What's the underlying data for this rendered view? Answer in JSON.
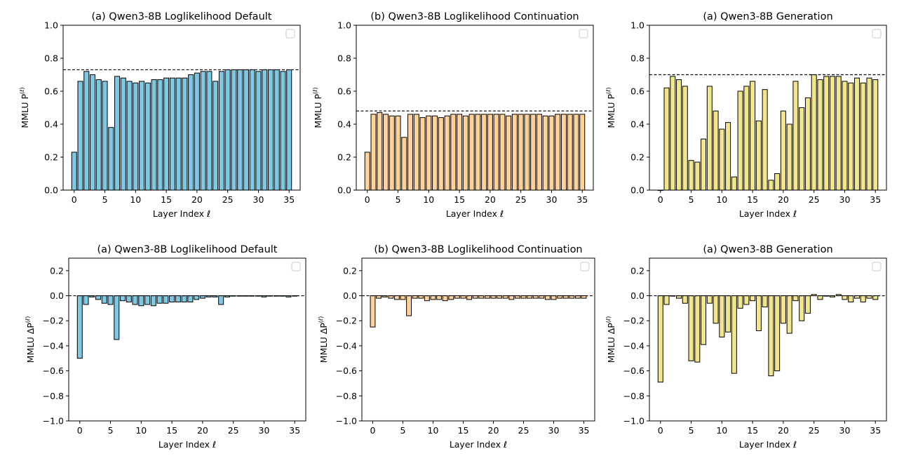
{
  "figure": {
    "background": "#ffffff",
    "edge_color": "#000000",
    "reference_line_color": "#000000"
  },
  "chart_data": [
    {
      "type": "bar",
      "title": "(a) Qwen3-8B Loglikelihood Default",
      "xlabel": "Layer Index ℓ",
      "ylabel": "MMLU P",
      "ylabel_sup": "(ℓ)",
      "ylim": [
        0,
        1.0
      ],
      "yticks": [
        "0.0",
        "0.2",
        "0.4",
        "0.6",
        "0.8",
        "1.0"
      ],
      "xlim": [
        -1.8,
        36.8
      ],
      "xticks": [
        "0",
        "5",
        "10",
        "15",
        "20",
        "25",
        "30",
        "35"
      ],
      "x": [
        0,
        1,
        2,
        3,
        4,
        5,
        6,
        7,
        8,
        9,
        10,
        11,
        12,
        13,
        14,
        15,
        16,
        17,
        18,
        19,
        20,
        21,
        22,
        23,
        24,
        25,
        26,
        27,
        28,
        29,
        30,
        31,
        32,
        33,
        34,
        35
      ],
      "values": [
        0.23,
        0.66,
        0.72,
        0.7,
        0.67,
        0.66,
        0.38,
        0.69,
        0.68,
        0.66,
        0.65,
        0.66,
        0.65,
        0.67,
        0.67,
        0.68,
        0.68,
        0.68,
        0.68,
        0.7,
        0.71,
        0.72,
        0.72,
        0.66,
        0.72,
        0.73,
        0.73,
        0.73,
        0.73,
        0.73,
        0.72,
        0.73,
        0.73,
        0.73,
        0.72,
        0.73
      ],
      "reference_line": 0.73,
      "bar_color": "#7ec8e3",
      "legend": "top-right (empty)"
    },
    {
      "type": "bar",
      "title": "(b) Qwen3-8B Loglikelihood Continuation",
      "xlabel": "Layer Index ℓ",
      "ylabel": "MMLU P",
      "ylabel_sup": "(ℓ)",
      "ylim": [
        0,
        1.0
      ],
      "yticks": [
        "0.0",
        "0.2",
        "0.4",
        "0.6",
        "0.8",
        "1.0"
      ],
      "xlim": [
        -1.8,
        36.8
      ],
      "xticks": [
        "0",
        "5",
        "10",
        "15",
        "20",
        "25",
        "30",
        "35"
      ],
      "x": [
        0,
        1,
        2,
        3,
        4,
        5,
        6,
        7,
        8,
        9,
        10,
        11,
        12,
        13,
        14,
        15,
        16,
        17,
        18,
        19,
        20,
        21,
        22,
        23,
        24,
        25,
        26,
        27,
        28,
        29,
        30,
        31,
        32,
        33,
        34,
        35
      ],
      "values": [
        0.23,
        0.46,
        0.47,
        0.46,
        0.45,
        0.45,
        0.32,
        0.46,
        0.46,
        0.44,
        0.45,
        0.45,
        0.44,
        0.45,
        0.46,
        0.46,
        0.45,
        0.46,
        0.46,
        0.46,
        0.46,
        0.46,
        0.46,
        0.45,
        0.46,
        0.46,
        0.46,
        0.46,
        0.46,
        0.45,
        0.45,
        0.46,
        0.46,
        0.46,
        0.46,
        0.46
      ],
      "reference_line": 0.48,
      "bar_color": "#ffd29a",
      "legend": "top-right (empty)"
    },
    {
      "type": "bar",
      "title": "(a) Qwen3-8B Generation",
      "xlabel": "Layer Index ℓ",
      "ylabel": "MMLU P",
      "ylabel_sup": "(ℓ)",
      "ylim": [
        0,
        1.0
      ],
      "yticks": [
        "0.0",
        "0.2",
        "0.4",
        "0.6",
        "0.8",
        "1.0"
      ],
      "xlim": [
        -1.8,
        36.8
      ],
      "xticks": [
        "0",
        "5",
        "10",
        "15",
        "20",
        "25",
        "30",
        "35"
      ],
      "x": [
        0,
        1,
        2,
        3,
        4,
        5,
        6,
        7,
        8,
        9,
        10,
        11,
        12,
        13,
        14,
        15,
        16,
        17,
        18,
        19,
        20,
        21,
        22,
        23,
        24,
        25,
        26,
        27,
        28,
        29,
        30,
        31,
        32,
        33,
        34,
        35
      ],
      "values": [
        0.0,
        0.62,
        0.69,
        0.67,
        0.63,
        0.18,
        0.17,
        0.31,
        0.63,
        0.48,
        0.37,
        0.41,
        0.08,
        0.6,
        0.63,
        0.66,
        0.42,
        0.61,
        0.06,
        0.1,
        0.48,
        0.4,
        0.66,
        0.5,
        0.56,
        0.7,
        0.67,
        0.69,
        0.69,
        0.69,
        0.66,
        0.65,
        0.68,
        0.65,
        0.68,
        0.67
      ],
      "reference_line": 0.7,
      "bar_color": "#f1e68c",
      "legend": "top-right (empty)"
    },
    {
      "type": "bar",
      "title": "(a) Qwen3-8B Loglikelihood Default",
      "xlabel": "Layer Index ℓ",
      "ylabel": "MMLU ΔP",
      "ylabel_sup": "(ℓ)",
      "ylim": [
        -1.0,
        0.3
      ],
      "yticks": [
        "−1.0",
        "−0.8",
        "−0.6",
        "−0.4",
        "−0.2",
        "0.0",
        "0.2"
      ],
      "xlim": [
        -1.8,
        36.8
      ],
      "xticks": [
        "0",
        "5",
        "10",
        "15",
        "20",
        "25",
        "30",
        "35"
      ],
      "x": [
        0,
        1,
        2,
        3,
        4,
        5,
        6,
        7,
        8,
        9,
        10,
        11,
        12,
        13,
        14,
        15,
        16,
        17,
        18,
        19,
        20,
        21,
        22,
        23,
        24,
        25,
        26,
        27,
        28,
        29,
        30,
        31,
        32,
        33,
        34,
        35
      ],
      "values": [
        -0.5,
        -0.07,
        -0.01,
        -0.03,
        -0.06,
        -0.07,
        -0.35,
        -0.04,
        -0.05,
        -0.07,
        -0.08,
        -0.07,
        -0.08,
        -0.06,
        -0.06,
        -0.05,
        -0.05,
        -0.05,
        -0.05,
        -0.03,
        -0.02,
        -0.01,
        -0.01,
        -0.07,
        -0.01,
        0.0,
        0.0,
        0.0,
        0.0,
        0.0,
        -0.01,
        0.0,
        0.0,
        0.0,
        -0.01,
        0.0
      ],
      "reference_line": 0.0,
      "bar_color": "#7ec8e3",
      "legend": "top-right (empty)"
    },
    {
      "type": "bar",
      "title": "(b) Qwen3-8B Loglikelihood Continuation",
      "xlabel": "Layer Index ℓ",
      "ylabel": "MMLU ΔP",
      "ylabel_sup": "(ℓ)",
      "ylim": [
        -1.0,
        0.3
      ],
      "yticks": [
        "−1.0",
        "−0.8",
        "−0.6",
        "−0.4",
        "−0.2",
        "0.0",
        "0.2"
      ],
      "xlim": [
        -1.8,
        36.8
      ],
      "xticks": [
        "0",
        "5",
        "10",
        "15",
        "20",
        "25",
        "30",
        "35"
      ],
      "x": [
        0,
        1,
        2,
        3,
        4,
        5,
        6,
        7,
        8,
        9,
        10,
        11,
        12,
        13,
        14,
        15,
        16,
        17,
        18,
        19,
        20,
        21,
        22,
        23,
        24,
        25,
        26,
        27,
        28,
        29,
        30,
        31,
        32,
        33,
        34,
        35
      ],
      "values": [
        -0.25,
        -0.02,
        -0.01,
        -0.02,
        -0.03,
        -0.03,
        -0.16,
        -0.02,
        -0.02,
        -0.04,
        -0.03,
        -0.03,
        -0.04,
        -0.03,
        -0.02,
        -0.02,
        -0.03,
        -0.02,
        -0.02,
        -0.02,
        -0.02,
        -0.02,
        -0.02,
        -0.03,
        -0.02,
        -0.02,
        -0.02,
        -0.02,
        -0.02,
        -0.03,
        -0.03,
        -0.02,
        -0.02,
        -0.02,
        -0.02,
        -0.02
      ],
      "reference_line": 0.0,
      "bar_color": "#ffd29a",
      "legend": "top-right (empty)"
    },
    {
      "type": "bar",
      "title": "(a) Qwen3-8B Generation",
      "xlabel": "Layer Index ℓ",
      "ylabel": "MMLU ΔP",
      "ylabel_sup": "(ℓ)",
      "ylim": [
        -1.0,
        0.3
      ],
      "yticks": [
        "−1.0",
        "−0.8",
        "−0.6",
        "−0.4",
        "−0.2",
        "0.0",
        "0.2"
      ],
      "xlim": [
        -1.8,
        36.8
      ],
      "xticks": [
        "0",
        "5",
        "10",
        "15",
        "20",
        "25",
        "30",
        "35"
      ],
      "x": [
        0,
        1,
        2,
        3,
        4,
        5,
        6,
        7,
        8,
        9,
        10,
        11,
        12,
        13,
        14,
        15,
        16,
        17,
        18,
        19,
        20,
        21,
        22,
        23,
        24,
        25,
        26,
        27,
        28,
        29,
        30,
        31,
        32,
        33,
        34,
        35
      ],
      "values": [
        -0.69,
        -0.07,
        0.0,
        -0.02,
        -0.06,
        -0.52,
        -0.53,
        -0.39,
        -0.06,
        -0.22,
        -0.33,
        -0.29,
        -0.62,
        -0.1,
        -0.07,
        -0.04,
        -0.28,
        -0.09,
        -0.64,
        -0.6,
        -0.22,
        -0.3,
        -0.04,
        -0.2,
        -0.14,
        0.01,
        -0.03,
        0.0,
        -0.01,
        0.01,
        -0.03,
        -0.05,
        -0.02,
        -0.05,
        -0.02,
        -0.03
      ],
      "reference_line": 0.0,
      "bar_color": "#f1e68c",
      "legend": "top-right (empty)"
    }
  ]
}
